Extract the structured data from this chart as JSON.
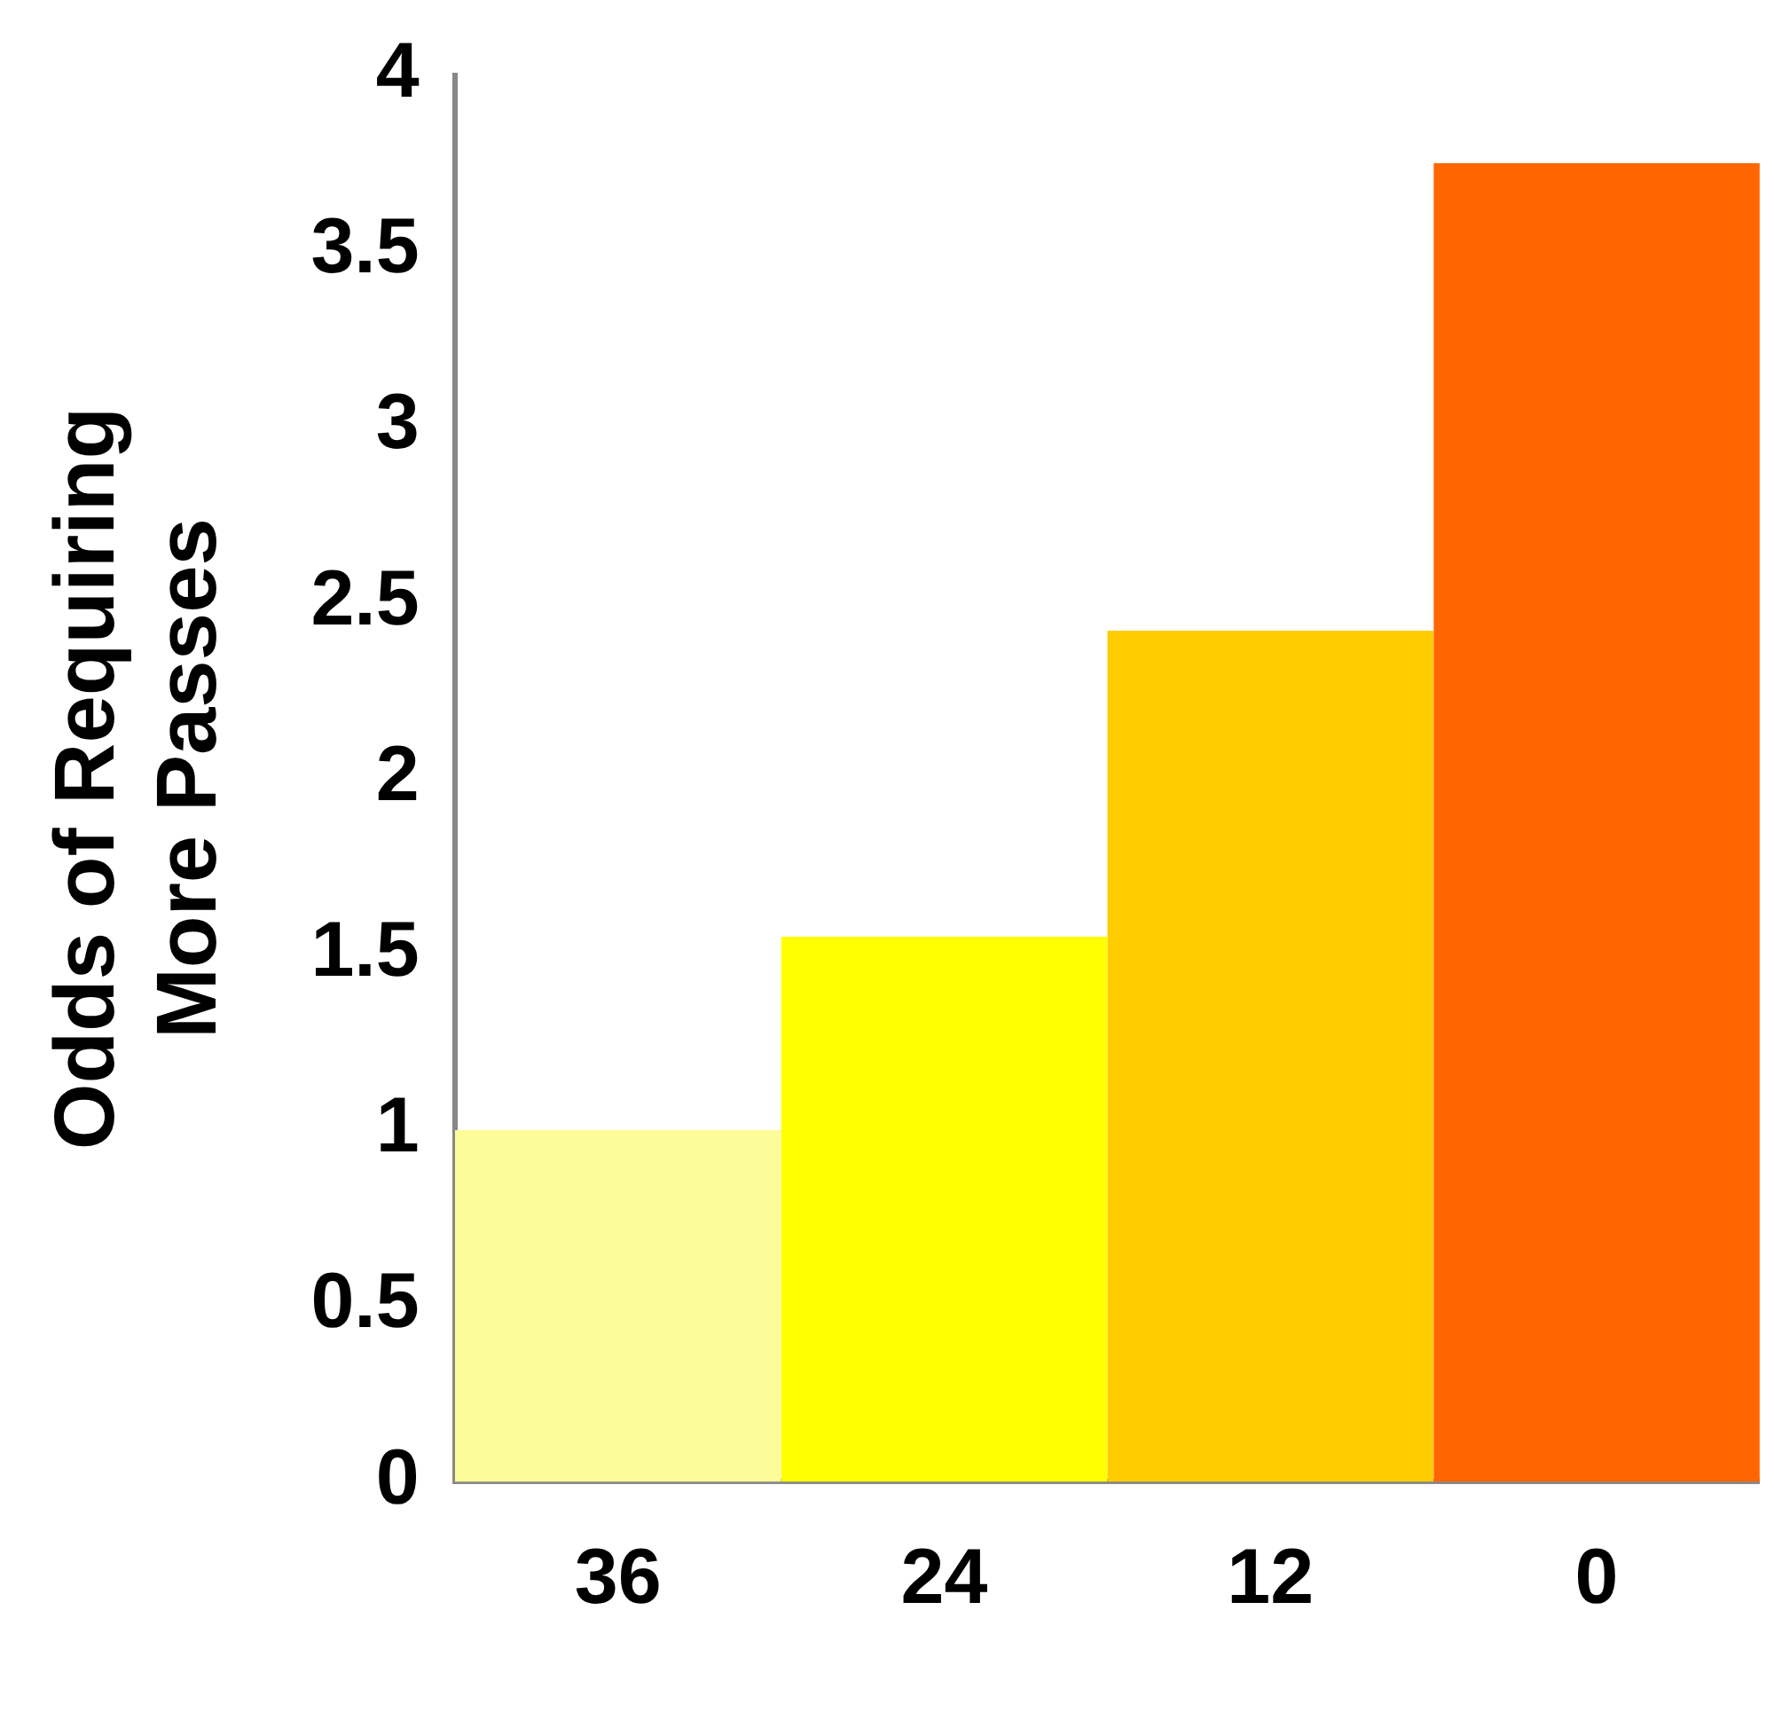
{
  "chart_data": {
    "type": "bar",
    "ylabel": "Odds of Requiring\nMore Passes",
    "categories": [
      "36",
      "24",
      "12",
      "0"
    ],
    "values": [
      1.0,
      1.55,
      2.42,
      3.75
    ],
    "colors": [
      "#fcfc99",
      "#ffff00",
      "#ffcc00",
      "#ff6600"
    ],
    "ylim": [
      0,
      4
    ],
    "yticks": [
      0,
      0.5,
      1,
      1.5,
      2,
      2.5,
      3,
      3.5,
      4
    ],
    "grid": false,
    "legend": false
  }
}
